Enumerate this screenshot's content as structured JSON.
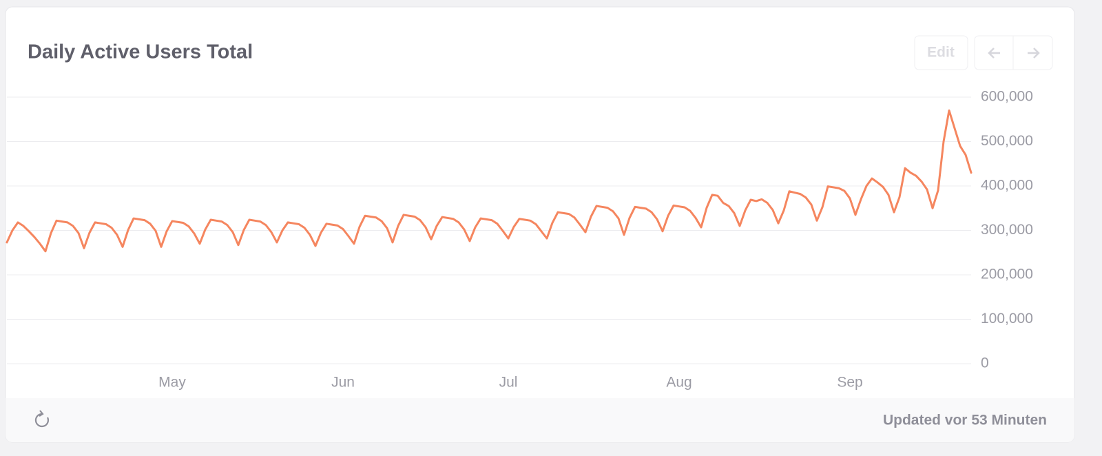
{
  "chart_data": {
    "type": "line",
    "title": "Daily Active Users Total",
    "color": "#f5865f",
    "grid": true,
    "ylim": [
      0,
      600000
    ],
    "yticks": [
      {
        "value": 0,
        "label": "0"
      },
      {
        "value": 100000,
        "label": "100,000"
      },
      {
        "value": 200000,
        "label": "200,000"
      },
      {
        "value": 300000,
        "label": "300,000"
      },
      {
        "value": 400000,
        "label": "400,000"
      },
      {
        "value": 500000,
        "label": "500,000"
      },
      {
        "value": 600000,
        "label": "600,000"
      }
    ],
    "categories": [
      null,
      null,
      null,
      null,
      null,
      null,
      null,
      null,
      null,
      null,
      null,
      null,
      null,
      null,
      null,
      null,
      null,
      null,
      null,
      null,
      null,
      null,
      null,
      null,
      null,
      null,
      null,
      null,
      null,
      null,
      "May",
      null,
      null,
      null,
      null,
      null,
      null,
      null,
      null,
      null,
      null,
      null,
      null,
      null,
      null,
      null,
      null,
      null,
      null,
      null,
      null,
      null,
      null,
      null,
      null,
      null,
      null,
      null,
      null,
      null,
      null,
      "Jun",
      null,
      null,
      null,
      null,
      null,
      null,
      null,
      null,
      null,
      null,
      null,
      null,
      null,
      null,
      null,
      null,
      null,
      null,
      null,
      null,
      null,
      null,
      null,
      null,
      null,
      null,
      null,
      null,
      null,
      "Jul",
      null,
      null,
      null,
      null,
      null,
      null,
      null,
      null,
      null,
      null,
      null,
      null,
      null,
      null,
      null,
      null,
      null,
      null,
      null,
      null,
      null,
      null,
      null,
      null,
      null,
      null,
      null,
      null,
      null,
      null,
      "Aug",
      null,
      null,
      null,
      null,
      null,
      null,
      null,
      null,
      null,
      null,
      null,
      null,
      null,
      null,
      null,
      null,
      null,
      null,
      null,
      null,
      null,
      null,
      null,
      null,
      null,
      null,
      null,
      null,
      null,
      null,
      "Sep",
      null,
      null,
      null,
      null,
      null,
      null,
      null,
      null,
      null,
      null,
      null,
      null,
      null,
      null,
      null,
      null,
      null,
      null,
      null,
      null,
      null,
      null
    ],
    "values": [
      273000,
      300000,
      318000,
      310000,
      298000,
      285000,
      270000,
      253000,
      294000,
      322000,
      320000,
      318000,
      310000,
      294000,
      260000,
      295000,
      318000,
      316000,
      314000,
      306000,
      290000,
      263000,
      301000,
      327000,
      325000,
      323000,
      315000,
      299000,
      263000,
      298000,
      321000,
      319000,
      317000,
      309000,
      293000,
      270000,
      302000,
      324000,
      322000,
      320000,
      312000,
      296000,
      267000,
      301000,
      324000,
      322000,
      320000,
      312000,
      296000,
      273000,
      300000,
      318000,
      316000,
      314000,
      306000,
      290000,
      265000,
      295000,
      315000,
      313000,
      311000,
      303000,
      287000,
      270000,
      308000,
      333000,
      331000,
      329000,
      321000,
      305000,
      273000,
      310000,
      335000,
      333000,
      331000,
      323000,
      307000,
      280000,
      310000,
      330000,
      328000,
      326000,
      318000,
      302000,
      276000,
      307000,
      327000,
      325000,
      323000,
      315000,
      299000,
      282000,
      308000,
      326000,
      324000,
      322000,
      314000,
      298000,
      282000,
      317000,
      341000,
      339000,
      337000,
      329000,
      313000,
      296000,
      331000,
      355000,
      353000,
      351000,
      343000,
      327000,
      290000,
      328000,
      353000,
      351000,
      349000,
      341000,
      325000,
      298000,
      333000,
      356000,
      354000,
      352000,
      344000,
      328000,
      307000,
      351000,
      380000,
      378000,
      362000,
      355000,
      339000,
      310000,
      345000,
      369000,
      366000,
      370000,
      362000,
      346000,
      316000,
      345000,
      388000,
      385000,
      382000,
      374000,
      358000,
      322000,
      352000,
      399000,
      397000,
      395000,
      389000,
      372000,
      335000,
      370000,
      400000,
      417000,
      408000,
      398000,
      380000,
      341000,
      375000,
      440000,
      430000,
      423000,
      410000,
      392000,
      350000,
      390000,
      500000,
      570000,
      530000,
      490000,
      470000,
      430000
    ]
  },
  "toolbar": {
    "edit": "Edit"
  },
  "footer": {
    "status": "Updated vor 53 Minuten"
  }
}
